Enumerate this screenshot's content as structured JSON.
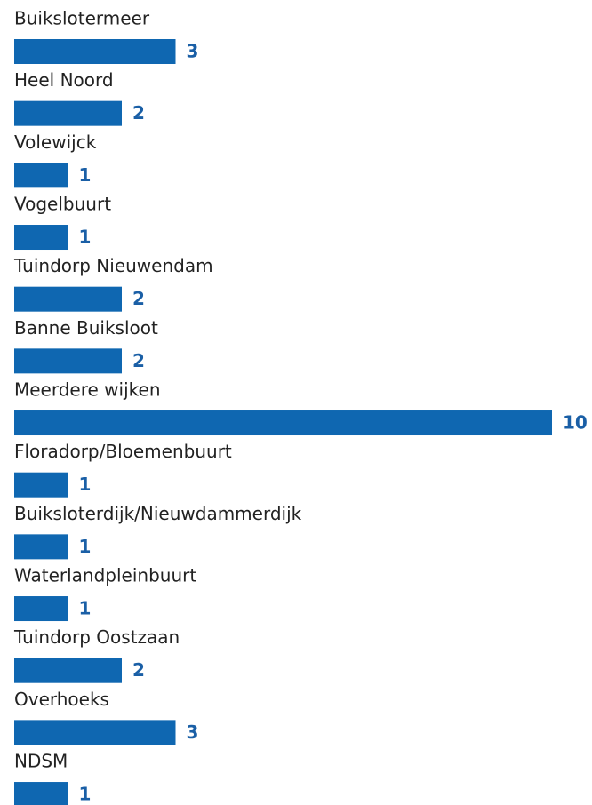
{
  "chart_data": {
    "type": "bar",
    "orientation": "horizontal",
    "color": "#0f67b1",
    "categories": [
      "Buikslotermeer",
      "Heel Noord",
      "Volewijck",
      "Vogelbuurt",
      "Tuindorp Nieuwendam",
      "Banne Buiksloot",
      "Meerdere wijken",
      "Floradorp/Bloemenbuurt",
      "Buiksloterdijk/Nieuwdammerdijk",
      "Waterlandpleinbuurt",
      "Tuindorp Oostzaan",
      "Overhoeks",
      "NDSM"
    ],
    "values": [
      3,
      2,
      1,
      1,
      2,
      2,
      10,
      1,
      1,
      1,
      2,
      3,
      1
    ]
  }
}
